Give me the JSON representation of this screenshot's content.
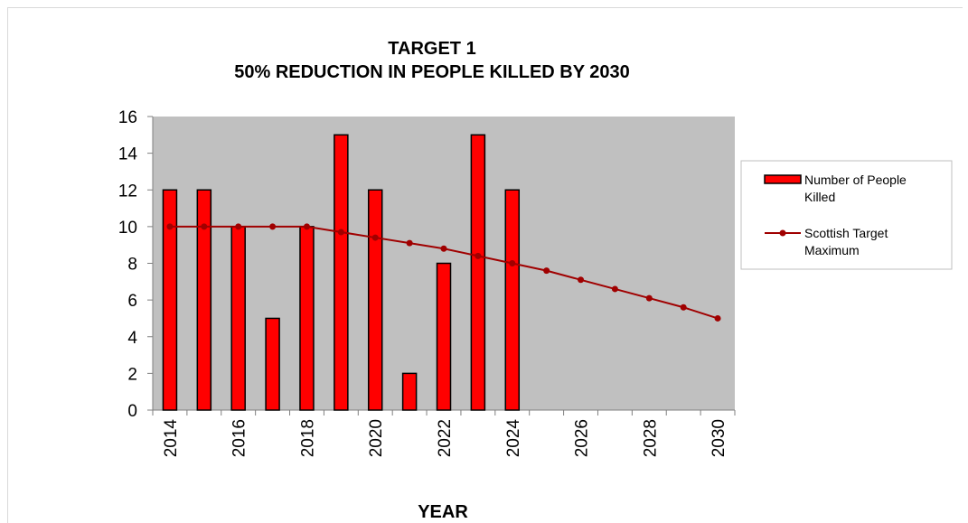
{
  "chart_data": {
    "type": "bar",
    "title_line1": "TARGET 1",
    "title_line2": "50% REDUCTION IN PEOPLE KILLED BY 2030",
    "xlabel": "YEAR",
    "ylabel": "",
    "ylim": [
      0,
      16
    ],
    "y_ticks": [
      "0",
      "2",
      "4",
      "6",
      "8",
      "10",
      "12",
      "14",
      "16"
    ],
    "x_tick_labels": [
      "2014",
      "2016",
      "2018",
      "2020",
      "2022",
      "2024",
      "2026",
      "2028",
      "2030"
    ],
    "categories": [
      "2014",
      "2015",
      "2016",
      "2017",
      "2018",
      "2019",
      "2020",
      "2021",
      "2022",
      "2023",
      "2024",
      "2025",
      "2026",
      "2027",
      "2028",
      "2029",
      "2030"
    ],
    "series": [
      {
        "name": "Number of People Killed",
        "kind": "bar",
        "color": "#ff0000",
        "values": [
          12,
          12,
          10,
          5,
          10,
          15,
          12,
          2,
          8,
          15,
          12,
          null,
          null,
          null,
          null,
          null,
          null
        ]
      },
      {
        "name": "Scottish Target Maximum",
        "kind": "line",
        "color": "#a00000",
        "values": [
          10,
          10,
          10,
          10,
          10,
          9.7,
          9.4,
          9.1,
          8.8,
          8.4,
          8.0,
          7.6,
          7.1,
          6.6,
          6.1,
          5.6,
          5.0
        ]
      }
    ],
    "legend": {
      "position": "right",
      "bar_label_line1": "Number of People",
      "bar_label_line2": "Killed",
      "line_label_line1": "Scottish Target",
      "line_label_line2": "Maximum"
    },
    "plot_background": "#c0c0c0",
    "grid": false
  }
}
